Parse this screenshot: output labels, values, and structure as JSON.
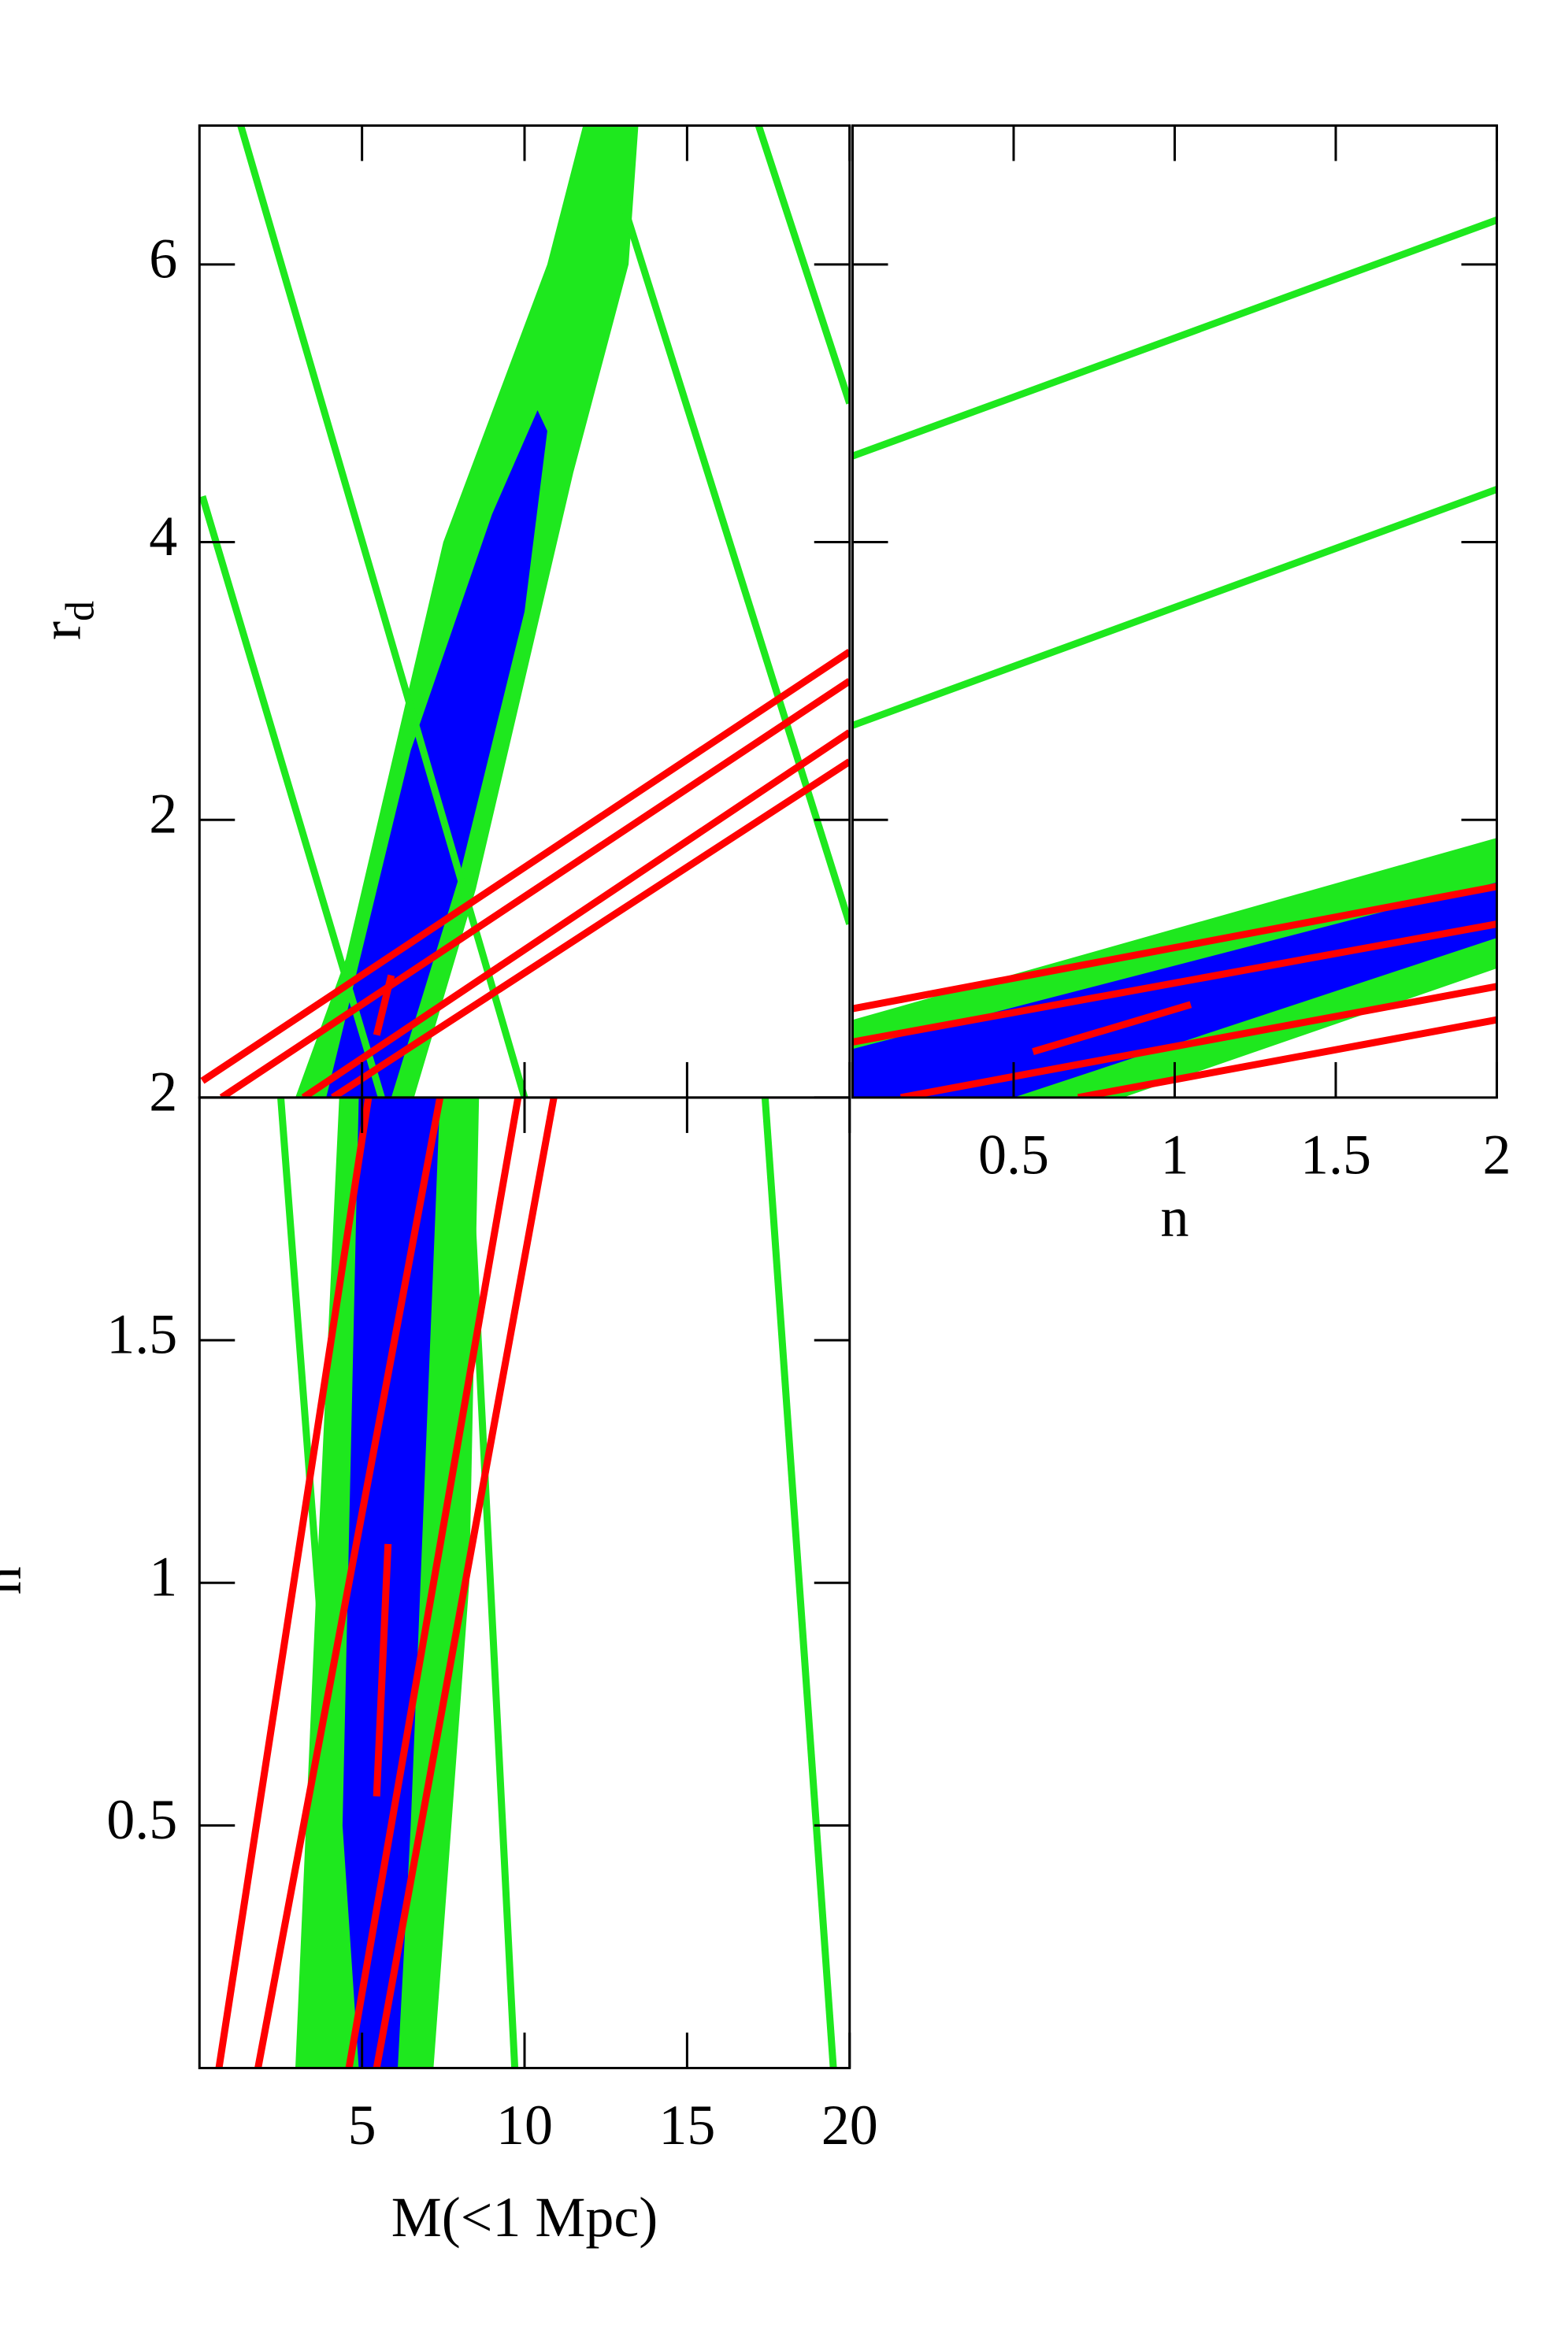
{
  "chart_data": [
    {
      "type": "line",
      "ylabel": {
        "text": "r",
        "sub": "d"
      },
      "xlim": [
        0,
        20
      ],
      "ylim": [
        0,
        7
      ],
      "xticks": [
        5,
        10,
        15,
        20
      ],
      "yticks": [
        2,
        4,
        6
      ],
      "show_xticklabels": false,
      "show_yticklabels": true,
      "series": [
        {
          "color": "#1ee81e",
          "fill": true,
          "x": [
            2.95,
            4.5,
            7.5,
            10.7,
            11.8,
            13.5,
            13.2,
            11.5,
            10.0,
            8.5,
            6.6
          ],
          "y": [
            0,
            1.0,
            4.0,
            6.0,
            7.0,
            7.0,
            6.0,
            4.5,
            3.0,
            1.5,
            0
          ]
        },
        {
          "color": "#0000ff",
          "fill": true,
          "x": [
            3.9,
            6.5,
            9.0,
            10.4,
            10.7,
            10.0,
            8.0,
            5.9
          ],
          "y": [
            0,
            2.5,
            4.2,
            4.95,
            4.8,
            3.5,
            1.6,
            0
          ]
        },
        {
          "color": "#1ee81e",
          "fill": false,
          "x": [
            1.27,
            10.0
          ],
          "y": [
            7.0,
            0
          ]
        },
        {
          "color": "#1ee81e",
          "fill": false,
          "x": [
            0.09,
            5.6
          ],
          "y": [
            4.33,
            0
          ]
        },
        {
          "color": "#1ee81e",
          "fill": false,
          "x": [
            12.95,
            20
          ],
          "y": [
            6.5,
            1.25
          ]
        },
        {
          "color": "#1ee81e",
          "fill": false,
          "x": [
            17.2,
            20
          ],
          "y": [
            7.0,
            5.0
          ]
        },
        {
          "color": "#ff0000",
          "fill": false,
          "x": [
            0.09,
            20
          ],
          "y": [
            0.12,
            3.21
          ]
        },
        {
          "color": "#ff0000",
          "fill": false,
          "x": [
            0.68,
            20
          ],
          "y": [
            0,
            3.0
          ]
        },
        {
          "color": "#ff0000",
          "fill": false,
          "x": [
            3.2,
            20
          ],
          "y": [
            0,
            2.63
          ]
        },
        {
          "color": "#ff0000",
          "fill": false,
          "x": [
            4.1,
            20
          ],
          "y": [
            0,
            2.42
          ]
        },
        {
          "color": "#ff0000",
          "fill": false,
          "x": [
            5.45,
            5.9
          ],
          "y": [
            0.45,
            0.88
          ]
        }
      ]
    },
    {
      "type": "line",
      "xlabel": "n",
      "xlim": [
        0,
        2
      ],
      "ylim": [
        0,
        7
      ],
      "xticks": [
        0.5,
        1,
        1.5,
        2
      ],
      "yticks": [
        2,
        4,
        6
      ],
      "show_xticklabels": true,
      "show_yticklabels": false,
      "series": [
        {
          "color": "#1ee81e",
          "fill": true,
          "x": [
            0,
            2,
            2,
            0.84,
            0
          ],
          "y": [
            0.56,
            1.87,
            0.93,
            0,
            0
          ]
        },
        {
          "color": "#0000ff",
          "fill": true,
          "x": [
            0,
            2,
            2,
            0.5,
            0
          ],
          "y": [
            0.35,
            1.55,
            1.15,
            0,
            0
          ]
        },
        {
          "color": "#1ee81e",
          "fill": false,
          "x": [
            0,
            2
          ],
          "y": [
            4.62,
            6.32
          ]
        },
        {
          "color": "#1ee81e",
          "fill": false,
          "x": [
            0,
            2
          ],
          "y": [
            2.68,
            4.38
          ]
        },
        {
          "color": "#ff0000",
          "fill": false,
          "x": [
            0,
            2
          ],
          "y": [
            0.64,
            1.52
          ]
        },
        {
          "color": "#ff0000",
          "fill": false,
          "x": [
            0,
            2
          ],
          "y": [
            0.4,
            1.25
          ]
        },
        {
          "color": "#ff0000",
          "fill": false,
          "x": [
            0.15,
            2
          ],
          "y": [
            0,
            0.8
          ]
        },
        {
          "color": "#ff0000",
          "fill": false,
          "x": [
            0.7,
            2
          ],
          "y": [
            0,
            0.56
          ]
        },
        {
          "color": "#ff0000",
          "fill": false,
          "x": [
            0.56,
            1.05
          ],
          "y": [
            0.33,
            0.67
          ]
        }
      ]
    },
    {
      "type": "line",
      "xlabel": "M(<1 Mpc)",
      "ylabel": "n",
      "xlim": [
        0,
        20
      ],
      "ylim": [
        0,
        2
      ],
      "xticks": [
        5,
        10,
        15,
        20
      ],
      "yticks": [
        0.5,
        1,
        1.5,
        2
      ],
      "show_xticklabels": true,
      "show_yticklabels": true,
      "series": [
        {
          "color": "#1ee81e",
          "fill": true,
          "x": [
            2.95,
            3.6,
            4.3,
            8.6,
            8.3,
            7.2
          ],
          "y": [
            0,
            1,
            2,
            2,
            1,
            0
          ]
        },
        {
          "color": "#0000ff",
          "fill": true,
          "x": [
            4.9,
            4.4,
            4.9,
            7.4,
            6.5,
            6.1
          ],
          "y": [
            0,
            0.5,
            2,
            2,
            0.5,
            0
          ]
        },
        {
          "color": "#1ee81e",
          "fill": false,
          "x": [
            2.5,
            4.77
          ],
          "y": [
            2,
            0
          ]
        },
        {
          "color": "#1ee81e",
          "fill": false,
          "x": [
            8.2,
            9.7
          ],
          "y": [
            2,
            0
          ]
        },
        {
          "color": "#1ee81e",
          "fill": false,
          "x": [
            17.4,
            19.5
          ],
          "y": [
            2,
            0
          ]
        },
        {
          "color": "#ff0000",
          "fill": false,
          "x": [
            0.6,
            5.2
          ],
          "y": [
            0,
            2
          ]
        },
        {
          "color": "#ff0000",
          "fill": false,
          "x": [
            1.8,
            7.4
          ],
          "y": [
            0,
            2
          ]
        },
        {
          "color": "#ff0000",
          "fill": false,
          "x": [
            4.6,
            9.8
          ],
          "y": [
            0,
            2
          ]
        },
        {
          "color": "#ff0000",
          "fill": false,
          "x": [
            5.45,
            10.9
          ],
          "y": [
            0,
            2
          ]
        },
        {
          "color": "#ff0000",
          "fill": false,
          "x": [
            5.45,
            5.8
          ],
          "y": [
            0.56,
            1.08
          ]
        }
      ]
    }
  ]
}
